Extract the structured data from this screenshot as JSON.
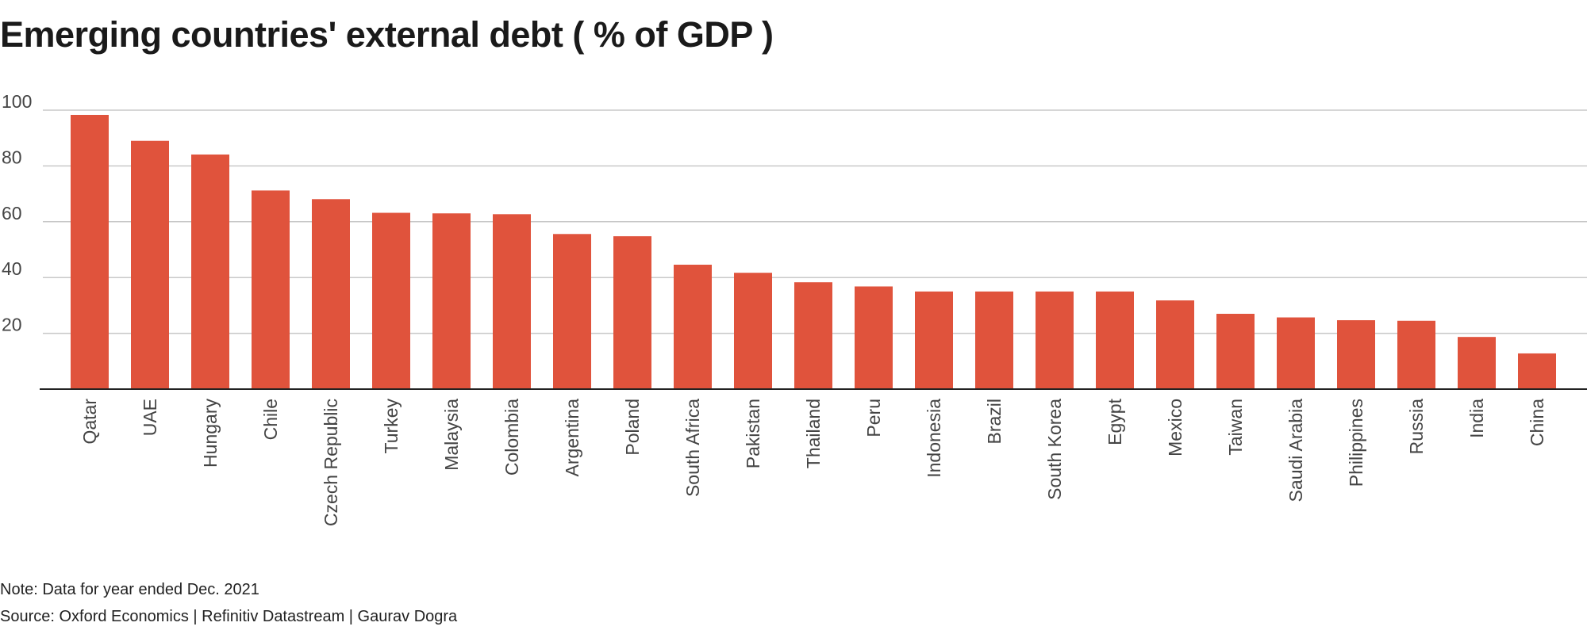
{
  "chart_data": {
    "type": "bar",
    "title": "Emerging countries' external debt ( % of GDP )",
    "xlabel": "",
    "ylabel": "",
    "ylim": [
      0,
      100
    ],
    "yticks": [
      20,
      40,
      60,
      80,
      100
    ],
    "grid": true,
    "categories": [
      "Qatar",
      "UAE",
      "Hungary",
      "Chile",
      "Czech Republic",
      "Turkey",
      "Malaysia",
      "Colombia",
      "Argentina",
      "Poland",
      "South Africa",
      "Pakistan",
      "Thailand",
      "Peru",
      "Indonesia",
      "Brazil",
      "South Korea",
      "Egypt",
      "Mexico",
      "Taiwan",
      "Saudi Arabia",
      "Philippines",
      "Russia",
      "India",
      "China"
    ],
    "values": [
      98.3,
      89,
      84.1,
      71.2,
      68.1,
      63.2,
      63,
      62.7,
      55.6,
      54.8,
      44.6,
      41.7,
      38.3,
      36.8,
      35,
      35,
      35,
      35,
      31.8,
      27,
      25.7,
      24.7,
      24.5,
      18.7,
      12.8
    ]
  },
  "colors": {
    "bar": "#e0533c",
    "grid": "#c8c8c8",
    "axis": "#222222",
    "label": "#444444"
  },
  "footer": {
    "note": "Note: Data for year ended Dec. 2021",
    "source": "Source: Oxford Economics | Refinitiv Datastream | Gaurav Dogra"
  }
}
